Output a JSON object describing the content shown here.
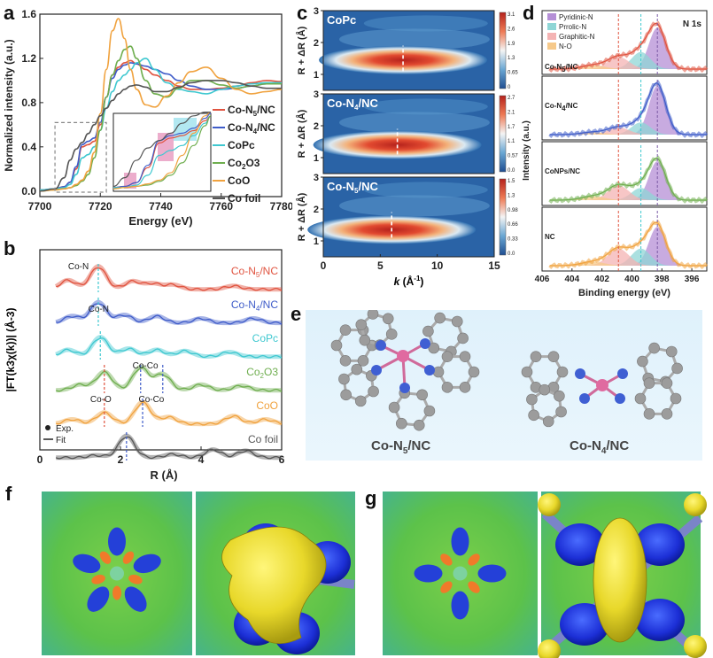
{
  "panel_labels": {
    "a": "a",
    "b": "b",
    "c": "c",
    "d": "d",
    "e": "e",
    "f": "f",
    "g": "g"
  },
  "chart_data": [
    {
      "id": "a",
      "type": "line",
      "xlabel": "Energy (eV)",
      "ylabel": "Normalized intensity (a.u.)",
      "xlim": [
        7700,
        7780
      ],
      "ylim": [
        -0.05,
        1.6
      ],
      "xticks": [
        "7700",
        "7720",
        "7740",
        "7760",
        "7780"
      ],
      "yticks": [
        "0.0",
        "0.4",
        "0.8",
        "1.2",
        "1.6"
      ],
      "legend": [
        "Co-N5/NC",
        "Co-N4/NC",
        "CoPc",
        "Co2O3",
        "CoO",
        "Co foil"
      ],
      "colors": [
        "#e0533f",
        "#3f5cc9",
        "#3fc8d0",
        "#6fae4f",
        "#f0a23e",
        "#555555"
      ],
      "x": [
        7700,
        7705,
        7708,
        7710,
        7712,
        7714,
        7716,
        7718,
        7720,
        7722,
        7724,
        7726,
        7728,
        7730,
        7732,
        7735,
        7738,
        7742,
        7746,
        7750,
        7755,
        7760,
        7765,
        7770,
        7775,
        7780
      ],
      "series": [
        {
          "name": "Co-N5/NC",
          "values": [
            0.01,
            0.02,
            0.04,
            0.08,
            0.2,
            0.4,
            0.42,
            0.45,
            0.6,
            0.85,
            1.05,
            1.12,
            1.16,
            1.18,
            1.15,
            1.1,
            1.05,
            1.0,
            0.95,
            0.92,
            0.92,
            0.93,
            0.95,
            0.98,
            1.0,
            0.99
          ]
        },
        {
          "name": "Co-N4/NC",
          "values": [
            0.01,
            0.02,
            0.04,
            0.08,
            0.22,
            0.42,
            0.45,
            0.48,
            0.62,
            0.85,
            1.02,
            1.1,
            1.14,
            1.16,
            1.15,
            1.13,
            1.1,
            1.06,
            1.0,
            0.95,
            0.92,
            0.92,
            0.93,
            0.95,
            0.97,
            0.98
          ]
        },
        {
          "name": "CoPc",
          "values": [
            0.01,
            0.02,
            0.03,
            0.06,
            0.15,
            0.3,
            0.33,
            0.4,
            0.55,
            0.75,
            0.9,
            1.0,
            1.05,
            1.1,
            1.16,
            1.2,
            1.1,
            0.98,
            0.92,
            0.9,
            0.88,
            0.92,
            0.95,
            0.97,
            0.98,
            0.98
          ]
        },
        {
          "name": "Co2O3",
          "values": [
            0.0,
            0.01,
            0.02,
            0.03,
            0.05,
            0.09,
            0.15,
            0.3,
            0.55,
            0.85,
            1.05,
            1.18,
            1.28,
            1.31,
            1.2,
            1.0,
            0.88,
            0.85,
            0.93,
            1.0,
            1.0,
            0.96,
            0.93,
            0.95,
            0.97,
            0.97
          ]
        },
        {
          "name": "CoO",
          "values": [
            0.0,
            0.01,
            0.02,
            0.03,
            0.06,
            0.1,
            0.18,
            0.35,
            0.7,
            1.1,
            1.45,
            1.56,
            1.38,
            1.1,
            0.92,
            0.78,
            0.76,
            0.86,
            0.98,
            1.08,
            1.12,
            1.02,
            0.92,
            0.88,
            0.9,
            0.92
          ]
        },
        {
          "name": "Co foil",
          "values": [
            0.0,
            0.02,
            0.12,
            0.28,
            0.38,
            0.44,
            0.52,
            0.6,
            0.68,
            0.75,
            0.82,
            0.88,
            0.92,
            0.95,
            0.96,
            0.94,
            0.9,
            0.9,
            0.94,
            0.98,
            1.0,
            1.0,
            0.98,
            0.95,
            0.93,
            0.93
          ]
        }
      ]
    },
    {
      "id": "b",
      "type": "line",
      "xlabel": "R (Å)",
      "ylabel": "|FT(k3χ(k))| (Å-3)",
      "xlim": [
        0,
        6
      ],
      "xticks": [
        "0",
        "2",
        "4",
        "6"
      ],
      "legend": [
        "Exp.",
        "Fit"
      ],
      "series_labels": [
        "Co-N5/NC",
        "Co-N4/NC",
        "CoPc",
        "Co2O3",
        "CoO",
        "Co foil"
      ],
      "colors": [
        "#e0533f",
        "#3f5cc9",
        "#3fc8d0",
        "#6fae4f",
        "#f0a23e",
        "#555555"
      ],
      "annotations": [
        "Co-N",
        "Co-N",
        "Co-O",
        "Co-Co",
        "Co-Co"
      ],
      "peaks": [
        [
          [
            0.7,
            0.4
          ],
          [
            1.45,
            1.0
          ],
          [
            2.3,
            0.35
          ],
          [
            2.8,
            0.25
          ],
          [
            3.3,
            0.2
          ],
          [
            4.8,
            0.15
          ]
        ],
        [
          [
            0.8,
            0.3
          ],
          [
            1.45,
            0.9
          ],
          [
            2.1,
            0.35
          ],
          [
            2.9,
            0.3
          ],
          [
            4.0,
            0.2
          ],
          [
            5.3,
            0.2
          ]
        ],
        [
          [
            0.7,
            0.3
          ],
          [
            1.5,
            0.85
          ],
          [
            2.2,
            0.35
          ],
          [
            2.9,
            0.3
          ],
          [
            3.6,
            0.25
          ],
          [
            4.7,
            0.2
          ]
        ],
        [
          [
            1.0,
            0.25
          ],
          [
            1.6,
            0.8
          ],
          [
            2.5,
            1.0
          ],
          [
            3.05,
            0.7
          ],
          [
            4.0,
            0.25
          ],
          [
            5.0,
            0.2
          ]
        ],
        [
          [
            0.8,
            0.2
          ],
          [
            1.6,
            0.5
          ],
          [
            2.55,
            0.95
          ],
          [
            3.2,
            0.3
          ],
          [
            4.8,
            0.35
          ],
          [
            5.6,
            0.2
          ]
        ],
        [
          [
            1.4,
            0.1
          ],
          [
            2.15,
            0.95
          ],
          [
            3.3,
            0.15
          ],
          [
            4.3,
            0.35
          ],
          [
            5.1,
            0.3
          ]
        ]
      ]
    },
    {
      "id": "c",
      "type": "heatmap",
      "xlabel": "k (Å-1)",
      "ylabel": "R + ΔR (Å)",
      "xlim": [
        0,
        15
      ],
      "ylim": [
        0.5,
        3
      ],
      "xticks": [
        "0",
        "5",
        "10",
        "15"
      ],
      "yticks": [
        "1",
        "2",
        "3"
      ],
      "panels": [
        {
          "name": "CoPc",
          "cbar": [
            "3.1",
            "2.6",
            "1.9",
            "1.3",
            "0.65",
            "0"
          ],
          "center": [
            7.0,
            1.45
          ]
        },
        {
          "name": "Co-N4/NC",
          "cbar": [
            "2.7",
            "2.1",
            "1.7",
            "1.1",
            "0.57",
            "0.0"
          ],
          "center": [
            6.5,
            1.4
          ]
        },
        {
          "name": "Co-N5/NC",
          "cbar": [
            "1.5",
            "1.3",
            "0.98",
            "0.66",
            "0.33",
            "0.0"
          ],
          "center": [
            6.0,
            1.35
          ]
        }
      ]
    },
    {
      "id": "d",
      "type": "line",
      "xlabel": "Binding energy (eV)",
      "ylabel": "Intensity (a.u.)",
      "title": "N 1s",
      "xlim": [
        406,
        395
      ],
      "xticks": [
        "406",
        "404",
        "402",
        "400",
        "398",
        "396"
      ],
      "legend": [
        "Pyridinic-N",
        "Prrolic-N",
        "Graphitic-N",
        "N-O"
      ],
      "legend_colors": [
        "#b58fd6",
        "#8fd6d6",
        "#f4b3b3",
        "#f6c98a"
      ],
      "samples": [
        "Co-N5/NC",
        "Co-N4/NC",
        "CoNPs/NC",
        "NC"
      ],
      "sample_colors": [
        "#e0533f",
        "#3f5cc9",
        "#6fae4f",
        "#f0a23e"
      ],
      "components": [
        {
          "name": "Pyridinic-N",
          "center": 398.3,
          "width": 0.8
        },
        {
          "name": "Prrolic-N",
          "center": 399.4,
          "width": 0.9
        },
        {
          "name": "Graphitic-N",
          "center": 400.9,
          "width": 1.0
        },
        {
          "name": "N-O",
          "center": 402.6,
          "width": 1.1
        }
      ],
      "amplitudes": [
        [
          0.85,
          0.35,
          0.25,
          0.08
        ],
        [
          1.0,
          0.25,
          0.15,
          0.05
        ],
        [
          0.8,
          0.25,
          0.3,
          0.08
        ],
        [
          0.8,
          0.35,
          0.35,
          0.08
        ]
      ]
    }
  ],
  "panel_e": {
    "labels": [
      "Co-N5/NC",
      "Co-N4/NC"
    ]
  },
  "panel_c_text": {
    "xlabel_k": "k",
    "xlabel_unit": " (Å",
    "xlabel_sup": "-1",
    "xlabel_close": ")"
  }
}
